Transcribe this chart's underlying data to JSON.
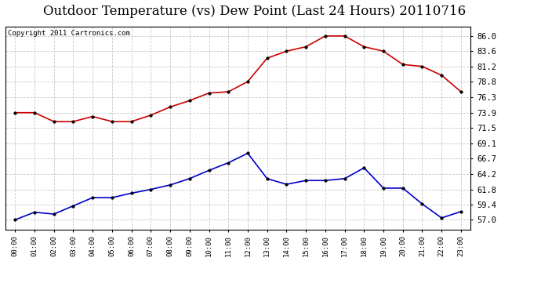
{
  "title": "Outdoor Temperature (vs) Dew Point (Last 24 Hours) 20110716",
  "copyright": "Copyright 2011 Cartronics.com",
  "hours": [
    "00:00",
    "01:00",
    "02:00",
    "03:00",
    "04:00",
    "05:00",
    "06:00",
    "07:00",
    "08:00",
    "09:00",
    "10:00",
    "11:00",
    "12:00",
    "13:00",
    "14:00",
    "15:00",
    "16:00",
    "17:00",
    "18:00",
    "19:00",
    "20:00",
    "21:00",
    "22:00",
    "23:00"
  ],
  "temp": [
    73.9,
    73.9,
    72.5,
    72.5,
    73.3,
    72.5,
    72.5,
    73.5,
    74.8,
    75.8,
    77.0,
    77.2,
    78.8,
    82.5,
    83.6,
    84.3,
    86.0,
    86.0,
    84.3,
    83.6,
    81.5,
    81.2,
    79.8,
    77.2
  ],
  "dew": [
    57.0,
    58.2,
    57.9,
    59.2,
    60.5,
    60.5,
    61.2,
    61.8,
    62.5,
    63.5,
    64.8,
    66.0,
    67.5,
    63.5,
    62.6,
    63.2,
    63.2,
    63.5,
    65.2,
    62.0,
    62.0,
    59.5,
    57.3,
    58.3
  ],
  "temp_color": "#cc0000",
  "dew_color": "#0000cc",
  "bg_color": "#ffffff",
  "plot_bg": "#ffffff",
  "grid_color": "#c8c8c8",
  "yticks": [
    57.0,
    59.4,
    61.8,
    64.2,
    66.7,
    69.1,
    71.5,
    73.9,
    76.3,
    78.8,
    81.2,
    83.6,
    86.0
  ],
  "ylim": [
    55.5,
    87.5
  ],
  "title_fontsize": 12,
  "copyright_fontsize": 6.5,
  "marker": "o",
  "marker_size": 2.5,
  "line_width": 1.2
}
